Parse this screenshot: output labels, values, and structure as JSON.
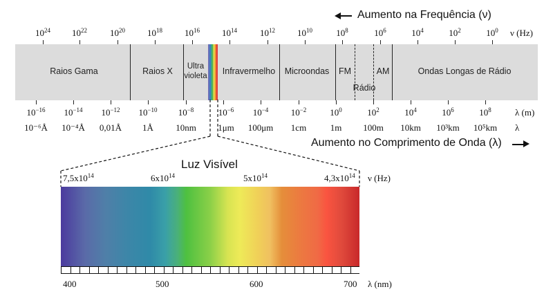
{
  "top_heading": {
    "text": "Aumento na Frequência (ν)",
    "arrow": "left-arrow"
  },
  "bottom_heading": {
    "text": "Aumento no Comprimento de Onda (λ)",
    "arrow": "right-arrow"
  },
  "frequency_axis": {
    "unit": "ν (Hz)",
    "ticks": [
      {
        "base": "10",
        "exp": "24"
      },
      {
        "base": "10",
        "exp": "22"
      },
      {
        "base": "10",
        "exp": "20"
      },
      {
        "base": "10",
        "exp": "18"
      },
      {
        "base": "10",
        "exp": "16"
      },
      {
        "base": "10",
        "exp": "14"
      },
      {
        "base": "10",
        "exp": "12"
      },
      {
        "base": "10",
        "exp": "10"
      },
      {
        "base": "10",
        "exp": "8"
      },
      {
        "base": "10",
        "exp": "6"
      },
      {
        "base": "10",
        "exp": "4"
      },
      {
        "base": "10",
        "exp": "2"
      },
      {
        "base": "10",
        "exp": "0"
      }
    ]
  },
  "regions": [
    {
      "label": "Raios Gama"
    },
    {
      "label": "Raios X"
    },
    {
      "label_line1": "Ultra",
      "label_line2": "violeta"
    },
    {
      "label": "Infravermelho"
    },
    {
      "label": "Microondas"
    },
    {
      "label": "FM"
    },
    {
      "label": "Rádio"
    },
    {
      "label": "AM"
    },
    {
      "label": "Ondas Longas de Rádio"
    }
  ],
  "wavelength_axis": {
    "unit": "λ (m)",
    "unit2": "λ",
    "ticks": [
      {
        "base": "10",
        "exp": "−16",
        "alt": "10⁻⁶Å"
      },
      {
        "base": "10",
        "exp": "−14",
        "alt": "10⁻⁴Å"
      },
      {
        "base": "10",
        "exp": "−12",
        "alt": "0,01Å"
      },
      {
        "base": "10",
        "exp": "−10",
        "alt": "1Å"
      },
      {
        "base": "10",
        "exp": "−8",
        "alt": "10nm"
      },
      {
        "base": "10",
        "exp": "−6",
        "alt": "1μm"
      },
      {
        "base": "10",
        "exp": "−4",
        "alt": "100μm"
      },
      {
        "base": "10",
        "exp": "−2",
        "alt": "1cm"
      },
      {
        "base": "10",
        "exp": "0",
        "alt": "1m"
      },
      {
        "base": "10",
        "exp": "2",
        "alt": "100m"
      },
      {
        "base": "10",
        "exp": "4",
        "alt": "10km"
      },
      {
        "base": "10",
        "exp": "6",
        "alt": "10³km"
      },
      {
        "base": "10",
        "exp": "8",
        "alt": "10⁵km"
      }
    ]
  },
  "visible_light": {
    "title": "Luz Visível",
    "freq_unit": "ν (Hz)",
    "freq_labels": [
      {
        "mant": "7,5x10",
        "exp": "14"
      },
      {
        "mant": "6x10",
        "exp": "14"
      },
      {
        "mant": "5x10",
        "exp": "14"
      },
      {
        "mant": "4,3x10",
        "exp": "14"
      }
    ],
    "wl_unit": "λ (nm)",
    "wl_labels": [
      "400",
      "500",
      "600",
      "700"
    ],
    "colors": {
      "violet": "#4b3a9e",
      "blue": "#2f8aa8",
      "green": "#4ec040",
      "yellow": "#eeea58",
      "orange": "#e58e3a",
      "red": "#fa5440",
      "deep_red": "#c8282a"
    }
  },
  "colors": {
    "band_background": "#dcdcdc",
    "line": "#222222"
  }
}
